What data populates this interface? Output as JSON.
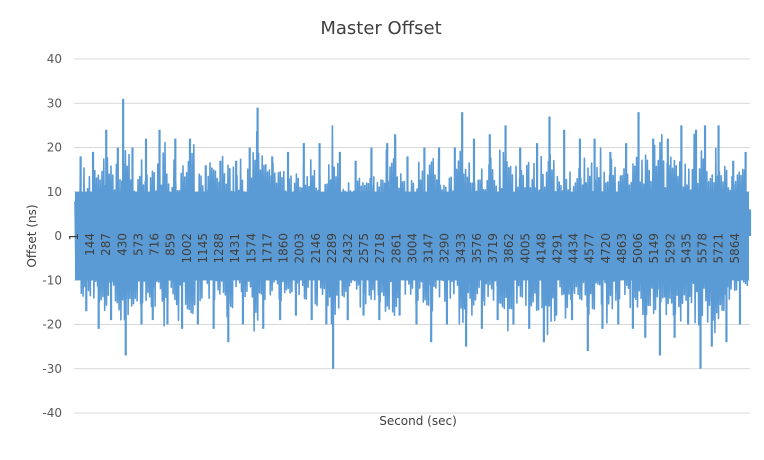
{
  "chart_data": {
    "type": "line",
    "title": "Master Offset",
    "xlabel": "Second  (sec)",
    "ylabel": "Offset  (ns)",
    "ylim": [
      -40,
      40
    ],
    "yticks": [
      -40,
      -30,
      -20,
      -10,
      0,
      10,
      20,
      30,
      40
    ],
    "xlim": [
      1,
      5999
    ],
    "xticks": [
      1,
      144,
      287,
      430,
      573,
      716,
      859,
      1002,
      1145,
      1288,
      1431,
      1574,
      1717,
      1860,
      2003,
      2146,
      2289,
      2432,
      2575,
      2718,
      2861,
      3004,
      3147,
      3290,
      3433,
      3576,
      3719,
      3862,
      4005,
      4148,
      4291,
      4434,
      4577,
      4720,
      4863,
      5006,
      5149,
      5292,
      5435,
      5578,
      5721,
      5864
    ],
    "grid": "horizontal",
    "color": "#5b9bd5",
    "series": [
      {
        "points": [
          [
            1,
            0
          ],
          [
            60,
            18
          ],
          [
            110,
            -17
          ],
          [
            170,
            19
          ],
          [
            220,
            -21
          ],
          [
            287,
            24
          ],
          [
            330,
            -19
          ],
          [
            390,
            20
          ],
          [
            437,
            31
          ],
          [
            460,
            -27
          ],
          [
            520,
            20
          ],
          [
            600,
            -20
          ],
          [
            640,
            22
          ],
          [
            700,
            -19
          ],
          [
            760,
            24
          ],
          [
            830,
            -20
          ],
          [
            900,
            22
          ],
          [
            960,
            -21
          ],
          [
            1030,
            22
          ],
          [
            1100,
            -20
          ],
          [
            1170,
            16
          ],
          [
            1240,
            -21
          ],
          [
            1300,
            17
          ],
          [
            1370,
            -24
          ],
          [
            1440,
            17
          ],
          [
            1500,
            -20
          ],
          [
            1560,
            20
          ],
          [
            1630,
            29
          ],
          [
            1680,
            -21
          ],
          [
            1760,
            18
          ],
          [
            1830,
            -19
          ],
          [
            1900,
            19
          ],
          [
            1970,
            -18
          ],
          [
            2040,
            21
          ],
          [
            2110,
            -19
          ],
          [
            2180,
            21
          ],
          [
            2240,
            -20
          ],
          [
            2300,
            -30
          ],
          [
            2360,
            19
          ],
          [
            2430,
            -19
          ],
          [
            2500,
            17
          ],
          [
            2570,
            -18
          ],
          [
            2640,
            20
          ],
          [
            2710,
            -19
          ],
          [
            2780,
            21
          ],
          [
            2850,
            23
          ],
          [
            2890,
            -18
          ],
          [
            2960,
            18
          ],
          [
            3040,
            -20
          ],
          [
            3110,
            20
          ],
          [
            3170,
            -24
          ],
          [
            3240,
            20
          ],
          [
            3310,
            -20
          ],
          [
            3380,
            20
          ],
          [
            3445,
            28
          ],
          [
            3480,
            -25
          ],
          [
            3550,
            22
          ],
          [
            3620,
            -21
          ],
          [
            3690,
            23
          ],
          [
            3760,
            -19
          ],
          [
            3830,
            25
          ],
          [
            3900,
            -20
          ],
          [
            3960,
            20
          ],
          [
            4040,
            -21
          ],
          [
            4110,
            21
          ],
          [
            4170,
            -24
          ],
          [
            4220,
            27
          ],
          [
            4280,
            -18
          ],
          [
            4350,
            24
          ],
          [
            4420,
            -19
          ],
          [
            4490,
            22
          ],
          [
            4560,
            -26
          ],
          [
            4620,
            22
          ],
          [
            4690,
            -21
          ],
          [
            4760,
            19
          ],
          [
            4830,
            -20
          ],
          [
            4900,
            21
          ],
          [
            4960,
            -21
          ],
          [
            5010,
            28
          ],
          [
            5070,
            -23
          ],
          [
            5140,
            22
          ],
          [
            5200,
            -27
          ],
          [
            5270,
            22
          ],
          [
            5330,
            -23
          ],
          [
            5390,
            25
          ],
          [
            5450,
            -20
          ],
          [
            5520,
            24
          ],
          [
            5560,
            -30
          ],
          [
            5600,
            25
          ],
          [
            5660,
            -25
          ],
          [
            5720,
            25
          ],
          [
            5790,
            -24
          ],
          [
            5850,
            17
          ],
          [
            5910,
            -20
          ],
          [
            5960,
            19
          ],
          [
            5999,
            6
          ]
        ]
      }
    ]
  }
}
